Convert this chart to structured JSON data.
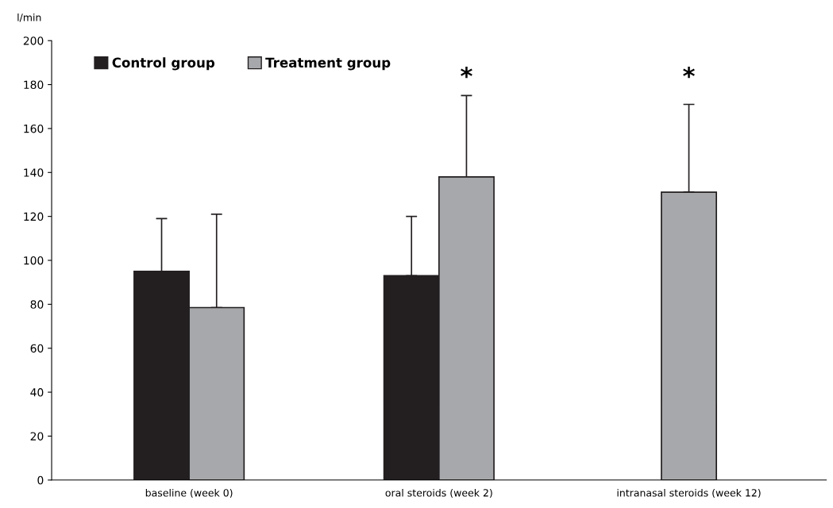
{
  "chart_data": {
    "type": "bar",
    "ylabel": "l/min",
    "categories": [
      "baseline (week 0)",
      "oral steroids (week 2)",
      "intranasal steroids (week 12)"
    ],
    "series": [
      {
        "name": "Control group",
        "color": "#231f20",
        "values": [
          95,
          93,
          null
        ],
        "errors": [
          [
            95,
            119
          ],
          [
            93,
            120
          ],
          null
        ]
      },
      {
        "name": "Treatment group",
        "color": "#a7a8ab",
        "values": [
          78.5,
          138,
          131
        ],
        "errors": [
          [
            78.5,
            121
          ],
          [
            138,
            175
          ],
          [
            131,
            171
          ]
        ]
      }
    ],
    "ylim": [
      0,
      200
    ],
    "yticks": [
      0,
      20,
      40,
      60,
      80,
      100,
      120,
      140,
      160,
      180,
      200
    ],
    "annotations": [
      "*",
      "*"
    ],
    "legend": "top left",
    "grid": false
  }
}
